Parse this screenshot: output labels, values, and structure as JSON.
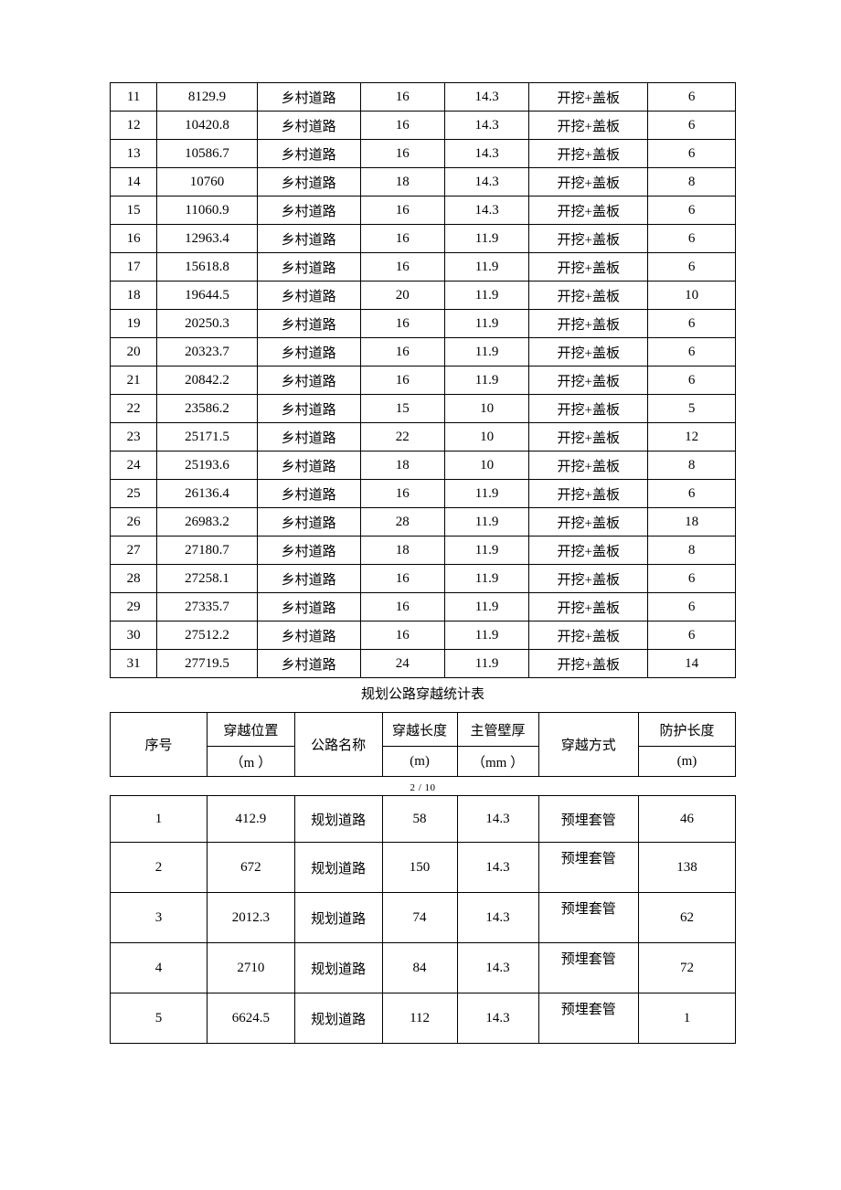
{
  "table1": {
    "rows": [
      [
        "11",
        "8129.9",
        "乡村道路",
        "16",
        "14.3",
        "开挖+盖板",
        "6"
      ],
      [
        "12",
        "10420.8",
        "乡村道路",
        "16",
        "14.3",
        "开挖+盖板",
        "6"
      ],
      [
        "13",
        "10586.7",
        "乡村道路",
        "16",
        "14.3",
        "开挖+盖板",
        "6"
      ],
      [
        "14",
        "10760",
        "乡村道路",
        "18",
        "14.3",
        "开挖+盖板",
        "8"
      ],
      [
        "15",
        "11060.9",
        "乡村道路",
        "16",
        "14.3",
        "开挖+盖板",
        "6"
      ],
      [
        "16",
        "12963.4",
        "乡村道路",
        "16",
        "11.9",
        "开挖+盖板",
        "6"
      ],
      [
        "17",
        "15618.8",
        "乡村道路",
        "16",
        "11.9",
        "开挖+盖板",
        "6"
      ],
      [
        "18",
        "19644.5",
        "乡村道路",
        "20",
        "11.9",
        "开挖+盖板",
        "10"
      ],
      [
        "19",
        "20250.3",
        "乡村道路",
        "16",
        "11.9",
        "开挖+盖板",
        "6"
      ],
      [
        "20",
        "20323.7",
        "乡村道路",
        "16",
        "11.9",
        "开挖+盖板",
        "6"
      ],
      [
        "21",
        "20842.2",
        "乡村道路",
        "16",
        "11.9",
        "开挖+盖板",
        "6"
      ],
      [
        "22",
        "23586.2",
        "乡村道路",
        "15",
        "10",
        "开挖+盖板",
        "5"
      ],
      [
        "23",
        "25171.5",
        "乡村道路",
        "22",
        "10",
        "开挖+盖板",
        "12"
      ],
      [
        "24",
        "25193.6",
        "乡村道路",
        "18",
        "10",
        "开挖+盖板",
        "8"
      ],
      [
        "25",
        "26136.4",
        "乡村道路",
        "16",
        "11.9",
        "开挖+盖板",
        "6"
      ],
      [
        "26",
        "26983.2",
        "乡村道路",
        "28",
        "11.9",
        "开挖+盖板",
        "18"
      ],
      [
        "27",
        "27180.7",
        "乡村道路",
        "18",
        "11.9",
        "开挖+盖板",
        "8"
      ],
      [
        "28",
        "27258.1",
        "乡村道路",
        "16",
        "11.9",
        "开挖+盖板",
        "6"
      ],
      [
        "29",
        "27335.7",
        "乡村道路",
        "16",
        "11.9",
        "开挖+盖板",
        "6"
      ],
      [
        "30",
        "27512.2",
        "乡村道路",
        "16",
        "11.9",
        "开挖+盖板",
        "6"
      ],
      [
        "31",
        "27719.5",
        "乡村道路",
        "24",
        "11.9",
        "开挖+盖板",
        "14"
      ]
    ]
  },
  "caption": "规划公路穿越统计表",
  "page_num": "2 / 10",
  "table2": {
    "header_top": [
      "序号",
      "穿越位置",
      "公路名称",
      "穿越长度",
      "主管壁厚",
      "穿越方式",
      "防护长度"
    ],
    "header_bot": [
      "（m ）",
      "(m)",
      "（mm ）",
      "(m)"
    ],
    "rows": [
      [
        "1",
        "412.9",
        "规划道路",
        "58",
        "14.3",
        "预埋套管",
        "46"
      ],
      [
        "2",
        "672",
        "规划道路",
        "150",
        "14.3",
        "预埋套管",
        "138"
      ],
      [
        "3",
        "2012.3",
        "规划道路",
        "74",
        "14.3",
        "预埋套管",
        "62"
      ],
      [
        "4",
        "2710",
        "规划道路",
        "84",
        "14.3",
        "预埋套管",
        "72"
      ],
      [
        "5",
        "6624.5",
        "规划道路",
        "112",
        "14.3",
        "预埋套管",
        "1"
      ]
    ]
  }
}
